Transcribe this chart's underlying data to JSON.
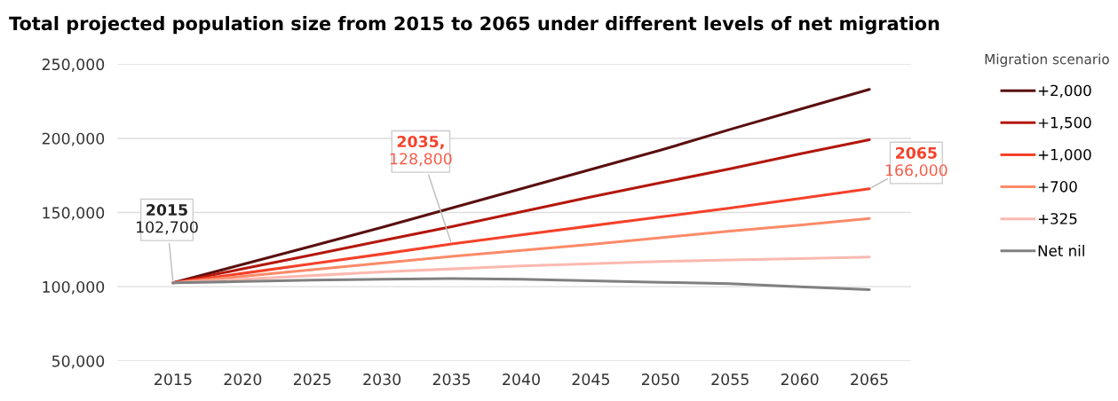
{
  "chart_data": {
    "type": "line",
    "title": "Total projected population size from 2015 to 2065 under different levels of net migration",
    "x": [
      2015,
      2020,
      2025,
      2030,
      2035,
      2040,
      2045,
      2050,
      2055,
      2060,
      2065
    ],
    "series": [
      {
        "name": "+2,000",
        "color": "#5a0f0f",
        "values": [
          102700,
          115000,
          127500,
          140000,
          153000,
          166000,
          179000,
          192000,
          206000,
          219500,
          233000
        ]
      },
      {
        "name": "+1,500",
        "color": "#b3170c",
        "values": [
          102700,
          112000,
          121500,
          131000,
          140500,
          150500,
          160500,
          170000,
          179500,
          189500,
          199000
        ]
      },
      {
        "name": "+1,000",
        "color": "#f5412a",
        "values": [
          102700,
          109000,
          115500,
          122000,
          128800,
          135000,
          141000,
          147000,
          153000,
          159500,
          166000
        ]
      },
      {
        "name": "+700",
        "color": "#fb8a68",
        "values": [
          102700,
          107000,
          111500,
          116000,
          120500,
          124500,
          128500,
          133000,
          137500,
          141500,
          146000
        ]
      },
      {
        "name": "+325",
        "color": "#fcb9b0",
        "values": [
          102700,
          105000,
          107500,
          110000,
          112000,
          114000,
          115500,
          117000,
          118000,
          119000,
          120000
        ]
      },
      {
        "name": "Net nil",
        "color": "#808080",
        "values": [
          102700,
          103500,
          104500,
          105000,
          105500,
          105000,
          104000,
          103000,
          102000,
          100000,
          98000
        ]
      }
    ],
    "legend_title": "Migration scenario",
    "legend": "right",
    "xlim": [
      2011,
      2068
    ],
    "xticks": [
      2015,
      2020,
      2025,
      2030,
      2035,
      2040,
      2045,
      2050,
      2055,
      2060,
      2065
    ],
    "ylim": [
      50000,
      250000
    ],
    "yticks": [
      {
        "value": 50000,
        "label": "50,000"
      },
      {
        "value": 100000,
        "label": "100,000"
      },
      {
        "value": 150000,
        "label": "150,000"
      },
      {
        "value": 200000,
        "label": "200,000"
      },
      {
        "value": 250000,
        "label": "250,000"
      }
    ],
    "grid": "y",
    "annotations": [
      {
        "text": "2015\n102,700",
        "x": 2015,
        "y": 102700
      },
      {
        "text": "2035,\n128,800",
        "x": 2035,
        "y": 128800
      },
      {
        "text": "2065\n166,000",
        "x": 2065,
        "y": 166000
      }
    ]
  }
}
